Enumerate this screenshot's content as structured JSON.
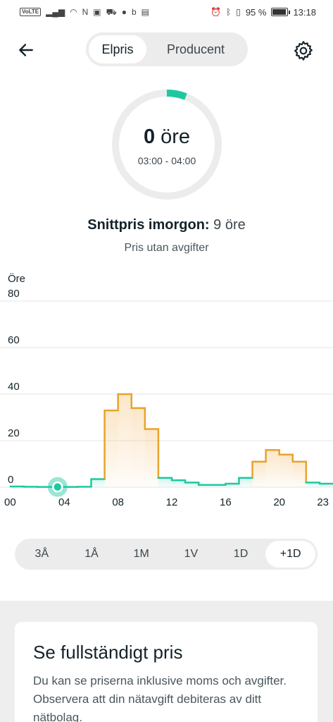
{
  "status_bar": {
    "left_icons": [
      "volte-icon",
      "signal-icon",
      "wifi-icon",
      "nfc-icon",
      "notification-icon",
      "car-icon",
      "facebook-icon",
      "b-icon",
      "app-icon"
    ],
    "volte_label": "VoLTE",
    "battery_percent": "95 %",
    "time": "13:18"
  },
  "header": {
    "tabs": [
      {
        "label": "Elpris",
        "active": true
      },
      {
        "label": "Producent",
        "active": false
      }
    ]
  },
  "gauge": {
    "value": "0",
    "unit": "öre",
    "time_range": "03:00 - 04:00",
    "fill_fraction": 0.06,
    "accent_color": "#1ec8a0",
    "track_color": "#ececec"
  },
  "average": {
    "label": "Snittpris imorgon:",
    "value": "9 öre"
  },
  "note": "Pris utan avgifter",
  "chart_data": {
    "type": "line",
    "step": true,
    "ylabel": "Öre",
    "ylim": [
      0,
      80
    ],
    "yticks": [
      "80",
      "60",
      "40",
      "20",
      "0"
    ],
    "xticks": [
      "00",
      "04",
      "08",
      "12",
      "16",
      "20",
      "23"
    ],
    "x_hours": [
      0,
      1,
      2,
      3,
      4,
      5,
      6,
      7,
      8,
      9,
      10,
      11,
      12,
      13,
      14,
      15,
      16,
      17,
      18,
      19,
      20,
      21,
      22,
      23
    ],
    "values": [
      0.3,
      0.2,
      0.1,
      0.1,
      0.1,
      0.2,
      3.5,
      33,
      40,
      34,
      25,
      4,
      3,
      2,
      1,
      1,
      1.5,
      4,
      11,
      16,
      14,
      11,
      2,
      1.5
    ],
    "highlight_hour": 3,
    "low_color": "#1ec8a0",
    "high_color": "#e8a32c",
    "grid": true
  },
  "range_selector": [
    {
      "label": "3Å",
      "active": false
    },
    {
      "label": "1Å",
      "active": false
    },
    {
      "label": "1M",
      "active": false
    },
    {
      "label": "1V",
      "active": false
    },
    {
      "label": "1D",
      "active": false
    },
    {
      "label": "+1D",
      "active": true
    }
  ],
  "card": {
    "title": "Se fullständigt pris",
    "text": "Du kan se priserna inklusive moms och avgifter. Observera att din nätavgift debiteras av ditt nätbolag."
  }
}
